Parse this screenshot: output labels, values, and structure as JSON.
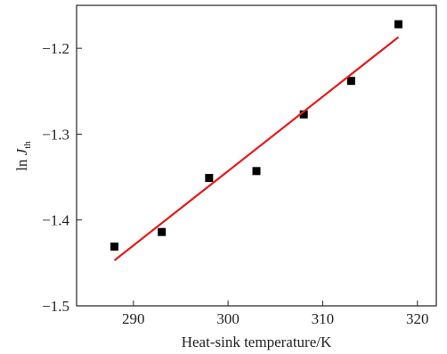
{
  "chart_data": {
    "type": "scatter",
    "xlabel": "Heat-sink temperature/K",
    "ylabel": {
      "prefix": "ln ",
      "main": "J",
      "sub": "th"
    },
    "xlim": [
      284,
      322
    ],
    "ylim": [
      -1.5,
      -1.15
    ],
    "xticks": [
      290,
      300,
      310,
      320
    ],
    "xtick_labels": [
      "290",
      "300",
      "310",
      "320"
    ],
    "yticks": [
      -1.2,
      -1.3,
      -1.4,
      -1.5
    ],
    "ytick_labels": [
      "−1.2",
      "−1.3",
      "−1.4",
      "−1.5"
    ],
    "grid": false,
    "series": [
      {
        "type": "scatter",
        "marker": "square",
        "color": "#000000",
        "x": [
          288,
          293,
          298,
          303,
          308,
          313,
          318
        ],
        "y": [
          -1.431,
          -1.414,
          -1.351,
          -1.343,
          -1.277,
          -1.238,
          -1.172
        ]
      },
      {
        "type": "line",
        "color": "#e31a1c",
        "x": [
          288,
          318
        ],
        "y": [
          -1.447,
          -1.187
        ]
      }
    ]
  }
}
